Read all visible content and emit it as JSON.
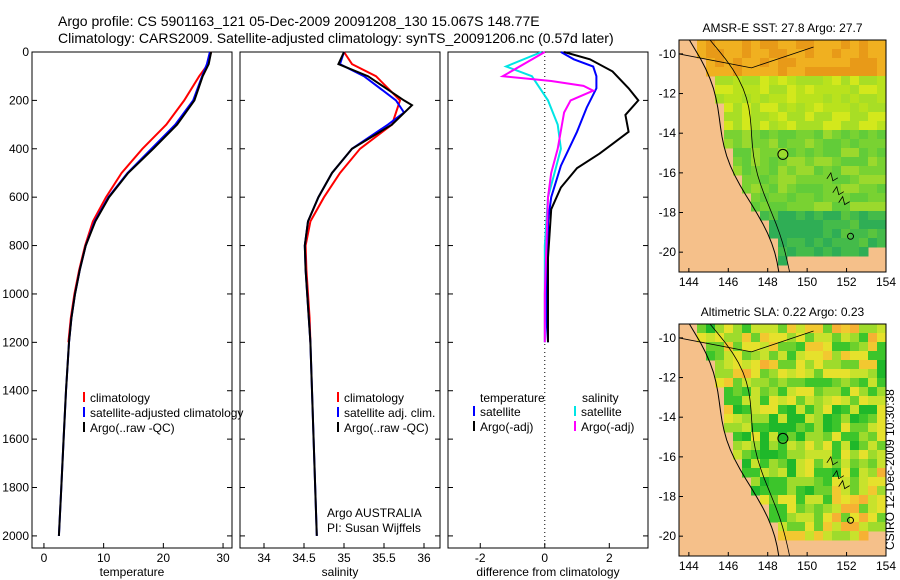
{
  "header": {
    "line1": "Argo profile: CS 5901163_121 05-Dec-2009 20091208_130 15.067S 148.77E",
    "line2": "Climatology: CARS2009. Satellite-adjusted climatology: synTS_20091206.nc (0.57d later)"
  },
  "side_label": "CSIRO 12-Dec-2009 10:30:38",
  "colors": {
    "climatology": "#ff0000",
    "satellite": "#0000ff",
    "argo": "#000000",
    "sal_satellite": "#00e5e5",
    "sal_argo": "#ff00ff",
    "land": "#f5c08a"
  },
  "chart_data": [
    {
      "type": "line",
      "panel": "temperature",
      "xlabel": "temperature",
      "ylabel": "",
      "xlim": [
        -2,
        31.5
      ],
      "ylim": [
        2050,
        0
      ],
      "xticks": [
        0,
        10,
        20,
        30
      ],
      "yticks": [
        0,
        200,
        400,
        600,
        800,
        1000,
        1200,
        1400,
        1600,
        1800,
        2000
      ],
      "legend": [
        "climatology",
        "satellite-adjusted climatology",
        "Argo(..raw -QC)"
      ],
      "series": [
        {
          "name": "climatology",
          "color": "#ff0000",
          "points": [
            [
              28,
              0
            ],
            [
              27.5,
              50
            ],
            [
              26,
              100
            ],
            [
              23.5,
              200
            ],
            [
              20.5,
              300
            ],
            [
              16.5,
              400
            ],
            [
              13,
              500
            ],
            [
              10.4,
              600
            ],
            [
              8.2,
              700
            ],
            [
              6.9,
              800
            ],
            [
              5.9,
              900
            ],
            [
              5.1,
              1000
            ],
            [
              4.5,
              1100
            ],
            [
              4.1,
              1200
            ]
          ]
        },
        {
          "name": "satellite-adjusted climatology",
          "color": "#0000ff",
          "points": [
            [
              27.8,
              0
            ],
            [
              27.3,
              50
            ],
            [
              26.5,
              100
            ],
            [
              25,
              200
            ],
            [
              22,
              300
            ],
            [
              18,
              400
            ],
            [
              14,
              500
            ],
            [
              10.8,
              600
            ],
            [
              8.5,
              700
            ],
            [
              7,
              800
            ],
            [
              6,
              900
            ],
            [
              5.2,
              1000
            ],
            [
              4.6,
              1100
            ],
            [
              4.2,
              1200
            ],
            [
              3.7,
              1400
            ],
            [
              3.3,
              1600
            ],
            [
              2.9,
              1800
            ],
            [
              2.5,
              2000
            ]
          ]
        },
        {
          "name": "Argo(..raw -QC)",
          "color": "#000000",
          "points": [
            [
              28,
              0
            ],
            [
              27.6,
              50
            ],
            [
              26.6,
              100
            ],
            [
              25.2,
              200
            ],
            [
              22.3,
              300
            ],
            [
              18.3,
              400
            ],
            [
              14.1,
              500
            ],
            [
              10.9,
              600
            ],
            [
              8.6,
              700
            ],
            [
              7,
              800
            ],
            [
              6,
              900
            ],
            [
              5.2,
              1000
            ],
            [
              4.6,
              1100
            ],
            [
              4.2,
              1200
            ],
            [
              3.7,
              1400
            ],
            [
              3.3,
              1600
            ],
            [
              2.9,
              1800
            ],
            [
              2.5,
              2000
            ]
          ]
        }
      ]
    },
    {
      "type": "line",
      "panel": "salinity",
      "xlabel": "salinity",
      "xlim": [
        33.7,
        36.2
      ],
      "ylim": [
        2050,
        0
      ],
      "xticks": [
        34,
        34.5,
        35,
        35.5,
        36
      ],
      "legend": [
        "climatology",
        "satellite adj. clim.",
        "Argo(..raw -QC)"
      ],
      "annotation": [
        "Argo AUSTRALIA",
        "PI: Susan Wijffels"
      ],
      "series": [
        {
          "name": "climatology",
          "color": "#ff0000",
          "points": [
            [
              35.0,
              0
            ],
            [
              35.1,
              50
            ],
            [
              35.4,
              100
            ],
            [
              35.7,
              200
            ],
            [
              35.6,
              300
            ],
            [
              35.2,
              400
            ],
            [
              34.95,
              500
            ],
            [
              34.75,
              600
            ],
            [
              34.58,
              700
            ],
            [
              34.52,
              800
            ],
            [
              34.53,
              900
            ],
            [
              34.55,
              1000
            ],
            [
              34.57,
              1100
            ],
            [
              34.58,
              1200
            ]
          ]
        },
        {
          "name": "satellite adj. clim.",
          "color": "#0000ff",
          "points": [
            [
              35.0,
              0
            ],
            [
              34.95,
              50
            ],
            [
              35.25,
              100
            ],
            [
              35.65,
              200
            ],
            [
              35.75,
              250
            ],
            [
              35.55,
              300
            ],
            [
              35.1,
              400
            ],
            [
              34.85,
              500
            ],
            [
              34.68,
              600
            ],
            [
              34.55,
              700
            ],
            [
              34.51,
              800
            ],
            [
              34.52,
              900
            ],
            [
              34.54,
              1000
            ],
            [
              34.56,
              1100
            ],
            [
              34.58,
              1200
            ],
            [
              34.6,
              1400
            ],
            [
              34.62,
              1600
            ],
            [
              34.64,
              1800
            ],
            [
              34.66,
              2000
            ]
          ]
        },
        {
          "name": "Argo(..raw -QC)",
          "color": "#000000",
          "points": [
            [
              35.0,
              0
            ],
            [
              34.93,
              50
            ],
            [
              35.3,
              100
            ],
            [
              35.75,
              200
            ],
            [
              35.85,
              220
            ],
            [
              35.6,
              300
            ],
            [
              35.1,
              400
            ],
            [
              34.85,
              500
            ],
            [
              34.68,
              600
            ],
            [
              34.55,
              700
            ],
            [
              34.51,
              800
            ],
            [
              34.52,
              900
            ],
            [
              34.54,
              1000
            ],
            [
              34.56,
              1100
            ],
            [
              34.58,
              1200
            ],
            [
              34.6,
              1400
            ],
            [
              34.62,
              1600
            ],
            [
              34.64,
              1800
            ],
            [
              34.66,
              2000
            ]
          ]
        }
      ]
    },
    {
      "type": "line",
      "panel": "difference",
      "xlabel": "difference from climatology",
      "xlim": [
        -3,
        3.2
      ],
      "ylim": [
        2050,
        0
      ],
      "xticks": [
        -2,
        0,
        2
      ],
      "zero_line": 0,
      "legend_headers": [
        "temperature",
        "salinity"
      ],
      "legend": [
        "satellite",
        "Argo(-adj)",
        "satellite",
        "Argo(-adj)"
      ],
      "series": [
        {
          "name": "temperature satellite",
          "color": "#0000ff",
          "points": [
            [
              0.5,
              0
            ],
            [
              0.9,
              30
            ],
            [
              1.5,
              60
            ],
            [
              1.6,
              100
            ],
            [
              1.6,
              150
            ],
            [
              1.3,
              230
            ],
            [
              1.0,
              330
            ],
            [
              0.5,
              470
            ],
            [
              0.2,
              600
            ],
            [
              0.1,
              700
            ],
            [
              0.1,
              800
            ],
            [
              0.05,
              900
            ],
            [
              0.05,
              1000
            ],
            [
              0.05,
              1100
            ],
            [
              0.1,
              1200
            ]
          ]
        },
        {
          "name": "temperature Argo(-adj)",
          "color": "#000000",
          "points": [
            [
              0.6,
              0
            ],
            [
              1.4,
              30
            ],
            [
              2.1,
              80
            ],
            [
              2.6,
              150
            ],
            [
              2.9,
              200
            ],
            [
              2.5,
              260
            ],
            [
              2.6,
              330
            ],
            [
              2.1,
              380
            ],
            [
              1.7,
              420
            ],
            [
              1.0,
              480
            ],
            [
              0.5,
              560
            ],
            [
              0.2,
              650
            ],
            [
              0.15,
              750
            ],
            [
              0.1,
              850
            ],
            [
              0.1,
              950
            ],
            [
              0.1,
              1050
            ],
            [
              0.1,
              1150
            ],
            [
              0.1,
              1200
            ]
          ]
        },
        {
          "name": "salinity satellite",
          "color": "#00e5e5",
          "points": [
            [
              -0.1,
              0
            ],
            [
              -1.2,
              60
            ],
            [
              -0.4,
              100
            ],
            [
              0.1,
              200
            ],
            [
              0.4,
              300
            ],
            [
              0.5,
              400
            ],
            [
              0.3,
              500
            ],
            [
              0.1,
              600
            ],
            [
              0.05,
              700
            ],
            [
              0.0,
              800
            ],
            [
              0.0,
              900
            ],
            [
              0.0,
              1000
            ],
            [
              0.0,
              1100
            ],
            [
              0.0,
              1200
            ]
          ]
        },
        {
          "name": "salinity Argo(-adj)",
          "color": "#ff00ff",
          "points": [
            [
              0.0,
              0
            ],
            [
              -1.3,
              100
            ],
            [
              0.2,
              120
            ],
            [
              1.2,
              140
            ],
            [
              1.5,
              160
            ],
            [
              0.8,
              200
            ],
            [
              0.6,
              250
            ],
            [
              0.4,
              400
            ],
            [
              0.2,
              500
            ],
            [
              0.1,
              600
            ],
            [
              0.05,
              800
            ],
            [
              0.0,
              1000
            ],
            [
              0.0,
              1200
            ]
          ]
        }
      ]
    },
    {
      "type": "heatmap",
      "panel": "sst_map",
      "title": "AMSR-E SST: 27.8 Argo: 27.7",
      "xlim": [
        143.5,
        154
      ],
      "ylim": [
        -21,
        -9.3
      ],
      "xticks": [
        144,
        146,
        148,
        150,
        152,
        154
      ],
      "yticks": [
        -10,
        -12,
        -14,
        -16,
        -18,
        -20
      ],
      "profile_marker": [
        148.77,
        -15.07
      ]
    },
    {
      "type": "heatmap",
      "panel": "sla_map",
      "title": "Altimetric SLA: 0.22 Argo: 0.23",
      "xlim": [
        143.5,
        154
      ],
      "ylim": [
        -21,
        -9.3
      ],
      "xticks": [
        144,
        146,
        148,
        150,
        152,
        154
      ],
      "yticks": [
        -10,
        -12,
        -14,
        -16,
        -18,
        -20
      ],
      "profile_marker": [
        148.77,
        -15.07
      ]
    }
  ]
}
